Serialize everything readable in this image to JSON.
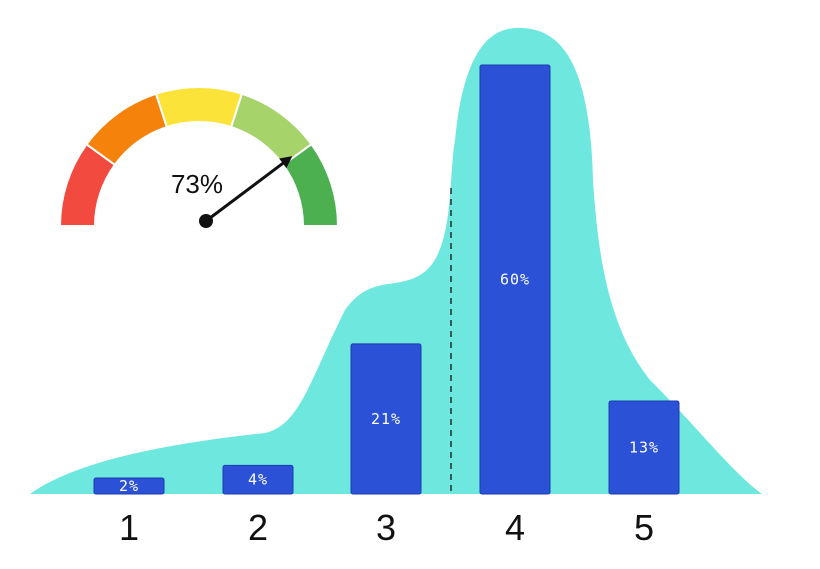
{
  "colors": {
    "background": "#ffffff",
    "distribution_area": "#6ee8de",
    "bar_fill": "#2b52d6",
    "gauge_needle": "#111111"
  },
  "gauge": {
    "value": 73,
    "label": "73%",
    "segment_colors": [
      "#f24a3f",
      "#f5820a",
      "#fce33a",
      "#a6d36a",
      "#4caf50"
    ]
  },
  "chart_data": {
    "type": "bar",
    "categories": [
      "1",
      "2",
      "3",
      "4",
      "5"
    ],
    "values": [
      2,
      4,
      21,
      60,
      13
    ],
    "value_labels": [
      "2%",
      "4%",
      "21%",
      "60%",
      "13%"
    ],
    "unit": "%",
    "title": "",
    "xlabel": "",
    "ylabel": "",
    "ylim": [
      0,
      60
    ],
    "grid": false,
    "legend": "none",
    "overlay": "smooth distribution area behind bars",
    "reference_line": "dashed vertical line between categories 3 and 4"
  }
}
